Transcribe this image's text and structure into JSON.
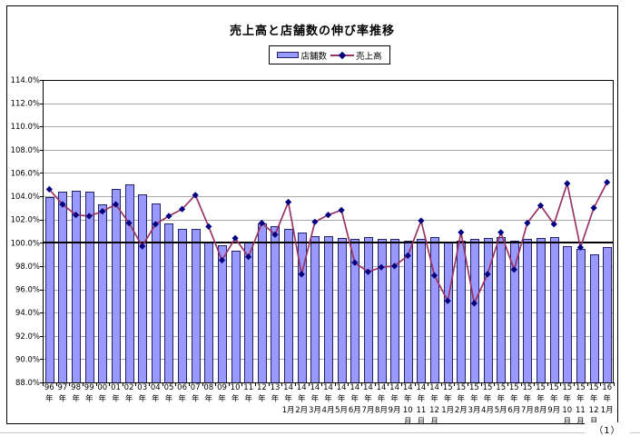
{
  "page": {
    "page_number": "（1）"
  },
  "chart": {
    "title": "売上高と店舗数の伸び率推移",
    "legend": {
      "items": [
        {
          "label": "店舗数"
        },
        {
          "label": "売上高"
        }
      ]
    }
  },
  "colors": {
    "bar_fill": "#9999ff",
    "bar_border": "#222266",
    "line_color": "#993366",
    "marker_color": "#000080",
    "grid_color": "#a8a8a8",
    "axis_color": "#000000",
    "baseline_color": "#000000",
    "text_color": "#000000"
  },
  "chart_data": {
    "type": "combo",
    "title": "売上高と店舗数の伸び率推移",
    "xlabel": "",
    "ylabel": "",
    "ylim": [
      88,
      114
    ],
    "ytick_step": 2,
    "baseline": 100,
    "grid": true,
    "legend_position": "top",
    "yticks": [
      {
        "value": 114,
        "label": "114.0%"
      },
      {
        "value": 112,
        "label": "112.0%"
      },
      {
        "value": 110,
        "label": "110.0%"
      },
      {
        "value": 108,
        "label": "108.0%"
      },
      {
        "value": 106,
        "label": "106.0%"
      },
      {
        "value": 104,
        "label": "104.0%"
      },
      {
        "value": 102,
        "label": "102.0%"
      },
      {
        "value": 100,
        "label": "100.0%"
      },
      {
        "value": 98,
        "label": "98.0%"
      },
      {
        "value": 96,
        "label": "96.0%"
      },
      {
        "value": 94,
        "label": "94.0%"
      },
      {
        "value": 92,
        "label": "92.0%"
      },
      {
        "value": 90,
        "label": "90.0%"
      },
      {
        "value": 88,
        "label": "88.0%"
      }
    ],
    "categories": [
      "96年",
      "97年",
      "98年",
      "99年",
      "00年",
      "01年",
      "02年",
      "03年",
      "04年",
      "05年",
      "06年",
      "07年",
      "08年",
      "09年",
      "10年",
      "11年",
      "12年",
      "13年",
      "14年1月",
      "14年2月",
      "14年3月",
      "14年4月",
      "14年5月",
      "14年6月",
      "14年7月",
      "14年8月",
      "14年9月",
      "14年10月",
      "14年11月",
      "14年12月",
      "15年1月",
      "15年2月",
      "15年3月",
      "15年4月",
      "15年5月",
      "15年6月",
      "15年7月",
      "15年8月",
      "15年9月",
      "15年10月",
      "15年11月",
      "15年12月",
      "16年1月"
    ],
    "series": [
      {
        "name": "店舗数",
        "type": "bar",
        "values": [
          103.9,
          104.4,
          104.5,
          104.4,
          103.3,
          104.6,
          105.0,
          104.2,
          103.4,
          101.7,
          101.2,
          101.2,
          100.1,
          99.8,
          99.3,
          100.1,
          101.7,
          101.4,
          101.2,
          100.9,
          100.6,
          100.6,
          100.4,
          100.3,
          100.5,
          100.3,
          100.3,
          100.2,
          100.3,
          100.5,
          100.1,
          100.2,
          100.3,
          100.4,
          100.5,
          100.2,
          100.3,
          100.4,
          100.5,
          99.7,
          99.5,
          99.0,
          99.6
        ]
      },
      {
        "name": "売上高",
        "type": "line",
        "values": [
          104.6,
          103.3,
          102.4,
          102.3,
          102.7,
          103.3,
          101.7,
          99.7,
          101.6,
          102.3,
          102.9,
          104.1,
          101.4,
          98.5,
          100.4,
          98.8,
          101.7,
          100.7,
          103.5,
          97.3,
          101.8,
          102.4,
          102.8,
          98.3,
          97.5,
          97.9,
          98.0,
          98.9,
          101.9,
          97.2,
          95.0,
          100.9,
          94.8,
          97.3,
          100.9,
          97.7,
          101.7,
          103.2,
          101.6,
          105.1,
          99.6,
          103.0,
          105.2
        ]
      }
    ]
  }
}
